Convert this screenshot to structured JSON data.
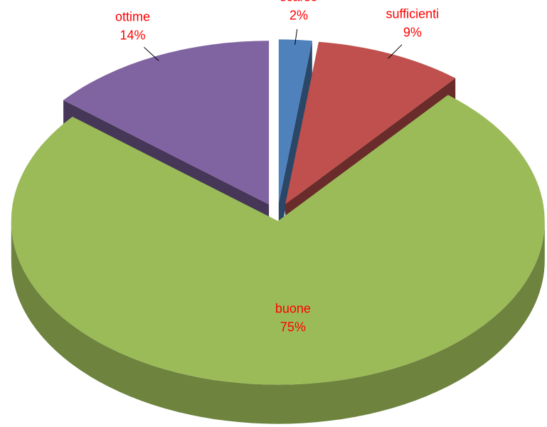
{
  "chart_data": {
    "type": "pie",
    "categories": [
      "scarse",
      "sufficienti",
      "buone",
      "ottime"
    ],
    "values": [
      2,
      9,
      75,
      14
    ],
    "value_labels": [
      "2%",
      "9%",
      "75%",
      "14%"
    ],
    "colors": [
      "#4f81bd",
      "#c0504d",
      "#9bbb59",
      "#8064a2"
    ],
    "label_color": "#ff0000"
  }
}
